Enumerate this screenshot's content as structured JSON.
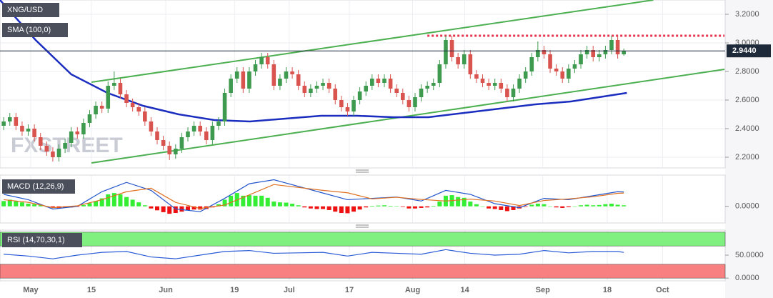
{
  "chart_data": [
    {
      "type": "candlestick",
      "title": "XNG/USD",
      "watermark": "FXSTREET",
      "open": [
        2.42,
        2.45,
        2.48,
        2.42,
        2.38,
        2.4,
        2.34,
        2.28,
        2.24,
        2.2,
        2.26,
        2.3,
        2.38,
        2.36,
        2.44,
        2.5,
        2.56,
        2.54,
        2.7,
        2.72,
        2.64,
        2.58,
        2.55,
        2.52,
        2.45,
        2.38,
        2.32,
        2.28,
        2.22,
        2.26,
        2.34,
        2.38,
        2.42,
        2.38,
        2.32,
        2.42,
        2.45,
        2.65,
        2.75,
        2.8,
        2.68,
        2.8,
        2.85,
        2.9,
        2.85,
        2.7,
        2.75,
        2.8,
        2.78,
        2.7,
        2.65,
        2.68,
        2.7,
        2.72,
        2.68,
        2.6,
        2.55,
        2.52,
        2.6,
        2.66,
        2.7,
        2.75,
        2.72,
        2.75,
        2.68,
        2.65,
        2.6,
        2.55,
        2.62,
        2.68,
        2.7,
        2.72,
        2.85,
        3.02,
        2.9,
        2.85,
        2.92,
        2.78,
        2.75,
        2.72,
        2.7,
        2.72,
        2.68,
        2.62,
        2.68,
        2.75,
        2.8,
        2.9,
        2.95,
        2.92,
        2.82,
        2.8,
        2.75,
        2.82,
        2.85,
        2.92,
        2.95,
        2.9,
        2.92,
        2.95,
        3.02,
        2.92
      ],
      "high": [
        2.48,
        2.51,
        2.51,
        2.45,
        2.43,
        2.43,
        2.37,
        2.31,
        2.27,
        2.29,
        2.33,
        2.41,
        2.41,
        2.47,
        2.53,
        2.59,
        2.59,
        2.73,
        2.8,
        2.75,
        2.67,
        2.61,
        2.58,
        2.55,
        2.48,
        2.41,
        2.35,
        2.31,
        2.29,
        2.37,
        2.41,
        2.45,
        2.45,
        2.41,
        2.45,
        2.48,
        2.68,
        2.78,
        2.83,
        2.83,
        2.83,
        2.88,
        2.93,
        2.93,
        2.88,
        2.78,
        2.83,
        2.83,
        2.81,
        2.73,
        2.71,
        2.73,
        2.75,
        2.75,
        2.71,
        2.63,
        2.58,
        2.63,
        2.69,
        2.73,
        2.78,
        2.78,
        2.78,
        2.78,
        2.71,
        2.68,
        2.63,
        2.65,
        2.71,
        2.73,
        2.75,
        2.88,
        3.05,
        3.05,
        2.93,
        2.95,
        2.95,
        2.81,
        2.78,
        2.75,
        2.75,
        2.75,
        2.71,
        2.71,
        2.78,
        2.83,
        2.93,
        3.01,
        2.98,
        2.95,
        2.85,
        2.83,
        2.85,
        2.88,
        2.95,
        2.98,
        2.98,
        2.95,
        2.98,
        3.05,
        3.05,
        2.96
      ],
      "low": [
        2.39,
        2.42,
        2.39,
        2.35,
        2.35,
        2.31,
        2.25,
        2.21,
        2.17,
        2.17,
        2.23,
        2.27,
        2.33,
        2.33,
        2.41,
        2.47,
        2.51,
        2.51,
        2.67,
        2.61,
        2.55,
        2.52,
        2.49,
        2.42,
        2.35,
        2.29,
        2.25,
        2.18,
        2.19,
        2.23,
        2.31,
        2.35,
        2.35,
        2.29,
        2.29,
        2.39,
        2.42,
        2.62,
        2.72,
        2.65,
        2.65,
        2.77,
        2.82,
        2.82,
        2.67,
        2.67,
        2.72,
        2.75,
        2.67,
        2.62,
        2.62,
        2.65,
        2.67,
        2.65,
        2.57,
        2.52,
        2.49,
        2.49,
        2.57,
        2.63,
        2.67,
        2.69,
        2.69,
        2.65,
        2.62,
        2.57,
        2.52,
        2.52,
        2.59,
        2.65,
        2.67,
        2.69,
        2.82,
        2.87,
        2.82,
        2.82,
        2.75,
        2.72,
        2.69,
        2.67,
        2.67,
        2.65,
        2.59,
        2.59,
        2.65,
        2.72,
        2.77,
        2.87,
        2.89,
        2.79,
        2.77,
        2.72,
        2.72,
        2.79,
        2.82,
        2.89,
        2.87,
        2.87,
        2.89,
        2.92,
        2.89,
        2.91
      ],
      "close": [
        2.45,
        2.48,
        2.42,
        2.38,
        2.4,
        2.34,
        2.28,
        2.24,
        2.2,
        2.26,
        2.3,
        2.38,
        2.36,
        2.44,
        2.5,
        2.56,
        2.54,
        2.7,
        2.72,
        2.64,
        2.58,
        2.55,
        2.52,
        2.45,
        2.38,
        2.32,
        2.28,
        2.22,
        2.26,
        2.34,
        2.38,
        2.42,
        2.38,
        2.32,
        2.42,
        2.45,
        2.65,
        2.75,
        2.8,
        2.68,
        2.8,
        2.85,
        2.9,
        2.85,
        2.7,
        2.75,
        2.8,
        2.78,
        2.7,
        2.65,
        2.68,
        2.7,
        2.72,
        2.68,
        2.6,
        2.55,
        2.52,
        2.6,
        2.66,
        2.7,
        2.75,
        2.72,
        2.75,
        2.68,
        2.65,
        2.6,
        2.55,
        2.62,
        2.68,
        2.7,
        2.72,
        2.85,
        3.02,
        2.9,
        2.85,
        2.92,
        2.78,
        2.75,
        2.72,
        2.7,
        2.72,
        2.68,
        2.62,
        2.68,
        2.75,
        2.8,
        2.9,
        2.95,
        2.92,
        2.82,
        2.8,
        2.75,
        2.82,
        2.85,
        2.92,
        2.95,
        2.9,
        2.92,
        2.95,
        3.02,
        2.92,
        2.944
      ],
      "up_color": "#3d9a4f",
      "down_color": "#d9534f",
      "overlay": {
        "name": "SMA (100,0)",
        "color": "#1b2dbf",
        "x": [
          -0.6,
          5.2,
          11.0,
          16.9,
          22.7,
          28.5,
          34.3,
          40.1,
          45.9,
          51.7,
          57.6,
          63.4,
          69.2,
          75.0,
          80.8,
          86.6,
          92.4,
          101.5
        ],
        "values": [
          3.3,
          3.02,
          2.78,
          2.65,
          2.56,
          2.5,
          2.46,
          2.45,
          2.47,
          2.49,
          2.49,
          2.48,
          2.48,
          2.51,
          2.54,
          2.57,
          2.59,
          2.65
        ]
      },
      "trendlines": [
        {
          "color": "#4caf50",
          "x": [
            14.3,
            105.8
          ],
          "values": [
            2.725,
            3.3
          ]
        },
        {
          "color": "#4caf50",
          "x": [
            14.3,
            117.4
          ],
          "values": [
            2.16,
            2.815
          ]
        }
      ],
      "resistance": {
        "color": "#e8334f",
        "x": [
          69.0,
          117.4
        ],
        "values": [
          3.05,
          3.05
        ]
      },
      "last_price": 2.944,
      "last_price_label": "2.9440",
      "last_price_color": "#1e2a3a",
      "xlim": [
        -0.6,
        117.5
      ],
      "xticks": [
        {
          "value": 4.4,
          "label": "May"
        },
        {
          "value": 14.3,
          "label": "15"
        },
        {
          "value": 26.4,
          "label": "Jun"
        },
        {
          "value": 37.6,
          "label": "19"
        },
        {
          "value": 46.5,
          "label": "Jul"
        },
        {
          "value": 56.3,
          "label": "17"
        },
        {
          "value": 66.6,
          "label": "Aug"
        },
        {
          "value": 75.1,
          "label": "14"
        },
        {
          "value": 87.8,
          "label": "Sep"
        },
        {
          "value": 98.3,
          "label": "18"
        },
        {
          "value": 107.3,
          "label": "Oct"
        }
      ],
      "ylim": [
        2.125,
        3.3
      ],
      "yticks": [
        {
          "value": 2.2,
          "label": "2.2000"
        },
        {
          "value": 2.4,
          "label": "2.4000"
        },
        {
          "value": 2.6,
          "label": "2.6000"
        },
        {
          "value": 2.8,
          "label": "2.8000"
        },
        {
          "value": 3.0,
          "label": "3.0000"
        },
        {
          "value": 3.2,
          "label": "3.2000"
        }
      ],
      "grid": true
    },
    {
      "type": "macd",
      "title": "MACD (12,26,9)",
      "histogram": {
        "up_color": "#33ee33",
        "down_color": "#ee1111",
        "values": [
          0.02,
          0.025,
          0.02,
          0.015,
          0.01,
          0.008,
          0.004,
          0.0,
          -0.005,
          -0.008,
          -0.006,
          -0.004,
          -0.002,
          0.005,
          0.012,
          0.02,
          0.03,
          0.045,
          0.05,
          0.045,
          0.035,
          0.025,
          0.015,
          0.004,
          -0.008,
          -0.015,
          -0.022,
          -0.028,
          -0.025,
          -0.02,
          -0.015,
          -0.012,
          -0.012,
          -0.01,
          -0.004,
          0.008,
          0.025,
          0.04,
          0.05,
          0.04,
          0.042,
          0.04,
          0.04,
          0.032,
          0.018,
          0.015,
          0.014,
          0.01,
          0.004,
          -0.004,
          -0.008,
          -0.01,
          -0.01,
          -0.014,
          -0.02,
          -0.025,
          -0.026,
          -0.02,
          -0.012,
          -0.004,
          0.002,
          0.003,
          0.004,
          0.002,
          0.001,
          -0.002,
          -0.008,
          -0.008,
          -0.006,
          -0.004,
          0.002,
          0.018,
          0.04,
          0.042,
          0.035,
          0.032,
          0.018,
          0.008,
          0.0,
          -0.008,
          -0.01,
          -0.014,
          -0.018,
          -0.014,
          -0.008,
          -0.002,
          0.006,
          0.01,
          0.008,
          0.0,
          -0.004,
          -0.006,
          -0.003,
          0.0,
          0.004,
          0.006,
          0.004,
          0.005,
          0.008,
          0.01,
          0.006,
          0.004
        ]
      },
      "series": [
        {
          "color": "#2255cc",
          "x": [
            0,
            4,
            8,
            12,
            16,
            20,
            24,
            28,
            32,
            36,
            40,
            44,
            48,
            52,
            56,
            60,
            64,
            68,
            72,
            76,
            80,
            84,
            88,
            92,
            96,
            100,
            101
          ],
          "values": [
            0.045,
            0.025,
            -0.01,
            0.0,
            0.055,
            0.09,
            0.06,
            -0.01,
            -0.02,
            0.03,
            0.085,
            0.1,
            0.075,
            0.05,
            0.025,
            0.03,
            0.035,
            0.02,
            0.06,
            0.045,
            0.01,
            -0.005,
            0.03,
            0.025,
            0.04,
            0.055,
            0.054
          ]
        },
        {
          "color": "#e07020",
          "x": [
            0,
            4,
            8,
            12,
            16,
            20,
            24,
            28,
            32,
            36,
            40,
            44,
            48,
            52,
            56,
            60,
            64,
            68,
            72,
            76,
            80,
            84,
            88,
            92,
            96,
            100,
            101
          ],
          "values": [
            0.025,
            0.015,
            -0.005,
            0.002,
            0.025,
            0.055,
            0.068,
            0.015,
            -0.008,
            0.005,
            0.043,
            0.082,
            0.071,
            0.06,
            0.051,
            0.028,
            0.034,
            0.026,
            0.02,
            0.027,
            0.02,
            0.003,
            0.022,
            0.028,
            0.036,
            0.049,
            0.05
          ]
        }
      ],
      "ylim": [
        -0.0625,
        0.1175
      ],
      "yticks": [
        {
          "value": 0,
          "label": "0.0000"
        }
      ]
    },
    {
      "type": "rsi",
      "title": "RSI (14,70,30,1)",
      "bands": [
        {
          "range": [
            70,
            100
          ],
          "color": "#80f080"
        },
        {
          "range": [
            0,
            30
          ],
          "color": "#f88080"
        }
      ],
      "series": [
        {
          "color": "#2a5bd7",
          "x": [
            0,
            4,
            8,
            12,
            16,
            20,
            24,
            28,
            32,
            36,
            40,
            44,
            48,
            52,
            56,
            60,
            64,
            68,
            72,
            76,
            80,
            84,
            88,
            92,
            96,
            100,
            101
          ],
          "values": [
            52,
            48,
            42,
            50,
            56,
            58,
            46,
            42,
            50,
            58,
            60,
            54,
            55,
            56,
            48,
            56,
            54,
            52,
            62,
            54,
            50,
            52,
            60,
            55,
            58,
            58,
            56
          ]
        }
      ],
      "ylim": [
        -6,
        104.5
      ],
      "yticks": [
        {
          "value": 50,
          "label": "50.0000"
        },
        {
          "value": 0,
          "label": "0.0000"
        }
      ]
    }
  ]
}
